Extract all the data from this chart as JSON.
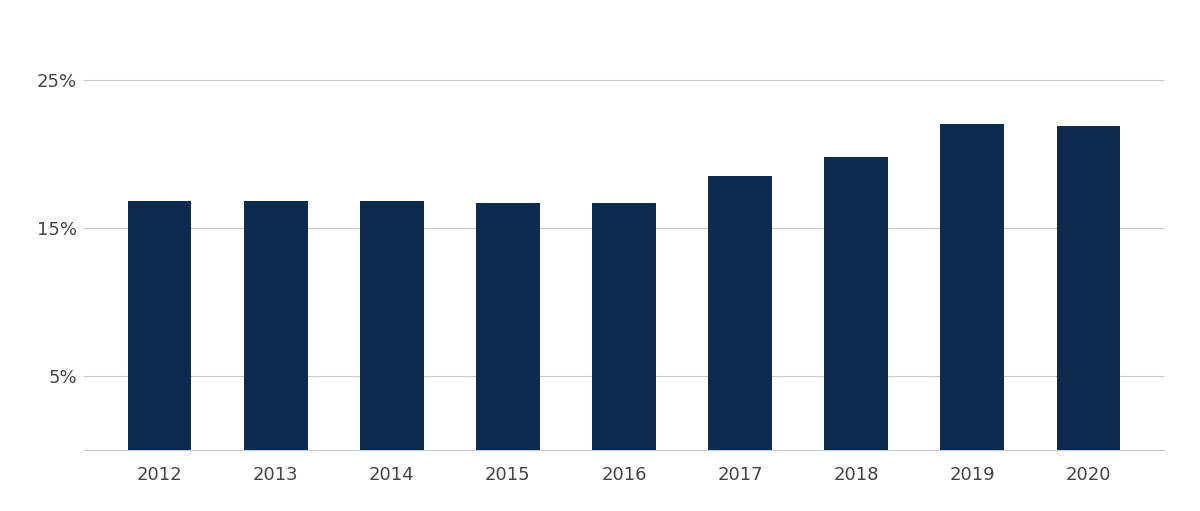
{
  "categories": [
    "2012",
    "2013",
    "2014",
    "2015",
    "2016",
    "2017",
    "2018",
    "2019",
    "2020"
  ],
  "values": [
    16.8,
    16.8,
    16.8,
    16.7,
    16.7,
    18.5,
    19.8,
    22.0,
    21.9
  ],
  "bar_color": "#0d2b4e",
  "background_color": "#ffffff",
  "yticks": [
    5,
    15,
    25
  ],
  "ylim": [
    0,
    28
  ],
  "grid_color": "#c8c8c8",
  "tick_label_color": "#444444",
  "tick_fontsize": 13,
  "bar_width": 0.55
}
